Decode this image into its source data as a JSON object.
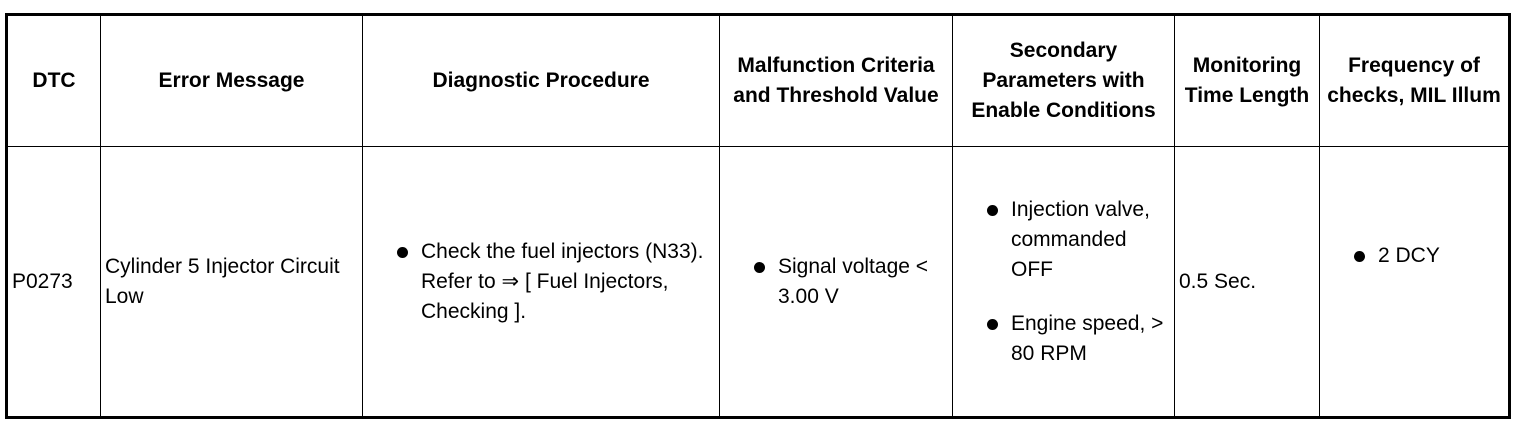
{
  "table": {
    "headers": [
      "DTC",
      "Error Message",
      "Diagnostic Procedure",
      "Malfunction Criteria and Threshold Value",
      "Secondary Parameters with Enable Conditions",
      "Monitoring Time Length",
      "Frequency of checks, MIL Illum"
    ],
    "rows": [
      [
        "P0273",
        "Cylinder 5 Injector Circuit Low",
        [
          "Check the fuel injectors (N33). Refer to ⇒ [ Fuel Injectors, Checking ]."
        ],
        [
          "Signal voltage < 3.00 V"
        ],
        [
          "Injection valve, commanded OFF",
          "Engine speed, > 80 RPM"
        ],
        "0.5 Sec.",
        [
          "2 DCY"
        ]
      ]
    ]
  }
}
